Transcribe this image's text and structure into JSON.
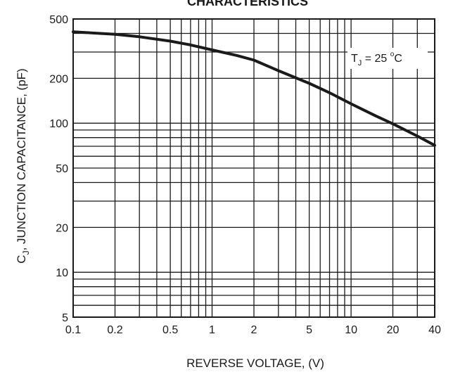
{
  "chart_data": {
    "type": "line",
    "title": "CHARACTERISTICS",
    "xlabel": "REVERSE VOLTAGE, (V)",
    "ylabel": "C",
    "ylabel_sub": "J",
    "ylabel_rest": ", JUNCTION CAPACITANCE, (pF)",
    "x_scale": "log",
    "y_scale": "log",
    "xlim": [
      0.1,
      40
    ],
    "ylim": [
      5,
      500
    ],
    "x_ticks": [
      0.1,
      0.2,
      0.5,
      1,
      2,
      5,
      10,
      20,
      40
    ],
    "x_tick_labels": [
      "0.1",
      "0.2",
      "0.5",
      "1",
      "2",
      "5",
      "10",
      "20",
      "40"
    ],
    "y_ticks": [
      5,
      10,
      20,
      50,
      100,
      200,
      500
    ],
    "y_tick_labels": [
      "5",
      "10",
      "20",
      "50",
      "100",
      "200",
      "500"
    ],
    "x_grid": [
      0.1,
      0.2,
      0.3,
      0.4,
      0.5,
      0.6,
      0.7,
      0.8,
      0.9,
      1,
      2,
      3,
      4,
      5,
      6,
      7,
      8,
      9,
      10,
      20,
      30,
      40
    ],
    "y_grid": [
      5,
      6,
      7,
      8,
      9,
      10,
      20,
      30,
      40,
      50,
      60,
      70,
      80,
      90,
      100,
      200,
      300,
      400,
      500
    ],
    "grid": true,
    "annotation": {
      "main": "T",
      "sub": "J",
      "rest": " = 25 ",
      "sup": "o",
      "unit": "C"
    },
    "series": [
      {
        "x": [
          0.1,
          0.2,
          0.3,
          0.5,
          0.7,
          1,
          1.5,
          2,
          3,
          5,
          7,
          10,
          15,
          20,
          30,
          40
        ],
        "values": [
          410,
          395,
          380,
          355,
          335,
          310,
          285,
          265,
          225,
          185,
          160,
          135,
          112,
          99,
          82,
          71
        ]
      }
    ]
  },
  "colors": {
    "line": "#1a1a1a",
    "grid": "#1a1a1a",
    "background": "#ffffff"
  }
}
